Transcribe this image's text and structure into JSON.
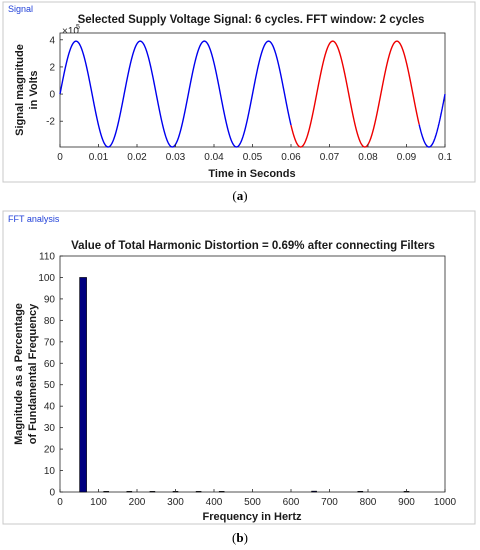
{
  "panel_a": {
    "panel_title": "Signal",
    "caption": {
      "open": "(",
      "letter": "a",
      "close": ")"
    },
    "scale_base": "×10",
    "scale_exp": "5"
  },
  "panel_b": {
    "panel_title": "FFT analysis",
    "caption": {
      "open": "(",
      "letter": "b",
      "close": ")"
    }
  },
  "chart_data": [
    {
      "type": "line",
      "title": "Selected Supply Voltage Signal: 6 cycles. FFT window: 2 cycles",
      "xlabel": "Time in Seconds",
      "ylabel": [
        "Signal magnitude",
        "in Volts"
      ],
      "y_multiplier": "1e5",
      "xlim": [
        0,
        0.1
      ],
      "ylim": [
        -3.9,
        4.5
      ],
      "xticks": [
        0,
        0.01,
        0.02,
        0.03,
        0.04,
        0.05,
        0.06,
        0.07,
        0.08,
        0.09,
        0.1
      ],
      "xtick_labels": [
        "0",
        "0.01",
        "0.02",
        "0.03",
        "0.04",
        "0.05",
        "0.06",
        "0.07",
        "0.08",
        "0.09",
        "0.1"
      ],
      "yticks": [
        -2,
        0,
        2,
        4
      ],
      "ytick_labels": [
        "-2",
        "0",
        "2",
        "4"
      ],
      "signal": {
        "amplitude": 3.9,
        "frequency_hz": 60,
        "x_start": 0,
        "x_end": 0.1
      },
      "series": [
        {
          "x_range": [
            0,
            0.06
          ],
          "color": "#0000ee"
        },
        {
          "x_range": [
            0.06,
            0.0933
          ],
          "color": "#ee0000"
        },
        {
          "x_range": [
            0.0933,
            0.1
          ],
          "color": "#0000ee"
        }
      ],
      "grid": false
    },
    {
      "type": "bar",
      "title": "Value of Total Harmonic Distortion = 0.69% after connecting Filters",
      "xlabel": "Frequency in Hertz",
      "ylabel": [
        "Magnitude as a Percentage",
        "of Fundamental Frequency"
      ],
      "xlim": [
        0,
        1000
      ],
      "ylim": [
        0,
        110
      ],
      "xticks": [
        0,
        100,
        200,
        300,
        400,
        500,
        600,
        700,
        800,
        900,
        1000
      ],
      "xtick_labels": [
        "0",
        "100",
        "200",
        "300",
        "400",
        "500",
        "600",
        "700",
        "800",
        "900",
        "1000"
      ],
      "yticks": [
        0,
        10,
        20,
        30,
        40,
        50,
        60,
        70,
        80,
        90,
        100,
        110
      ],
      "ytick_labels": [
        "0",
        "10",
        "20",
        "30",
        "40",
        "50",
        "60",
        "70",
        "80",
        "90",
        "100",
        "110"
      ],
      "bar_color": "#000080",
      "bars": [
        {
          "x": 60,
          "value": 100
        },
        {
          "x": 120,
          "value": 0.1
        },
        {
          "x": 180,
          "value": 0.15
        },
        {
          "x": 240,
          "value": 0.1
        },
        {
          "x": 300,
          "value": 0.1
        },
        {
          "x": 360,
          "value": 0.15
        },
        {
          "x": 420,
          "value": 0.1
        },
        {
          "x": 660,
          "value": 0.4
        },
        {
          "x": 780,
          "value": 0.3
        },
        {
          "x": 900,
          "value": 0.1
        }
      ],
      "grid": false
    }
  ]
}
